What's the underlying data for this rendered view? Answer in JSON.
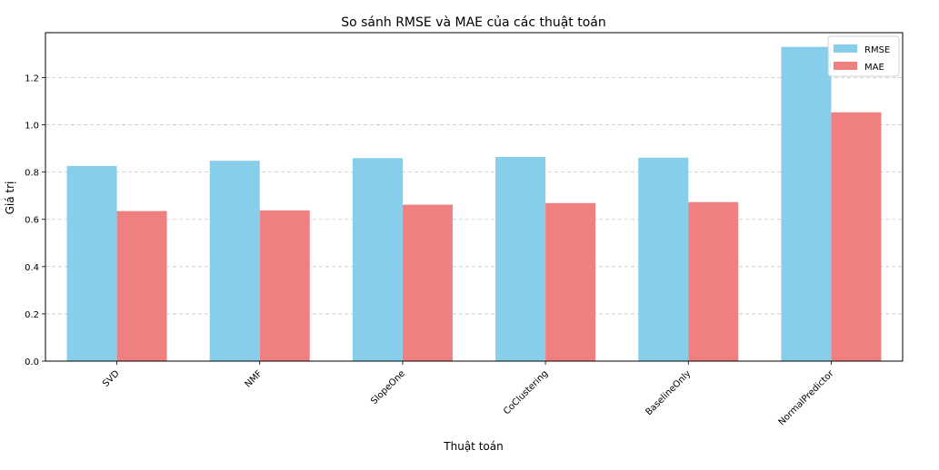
{
  "chart_data": {
    "type": "bar",
    "title": "So sánh RMSE và MAE của các thuật toán",
    "xlabel": "Thuật toán",
    "ylabel": "Giá trị",
    "categories": [
      "SVD",
      "NMF",
      "SlopeOne",
      "CoClustering",
      "BaselineOnly",
      "NormalPredictor"
    ],
    "series": [
      {
        "name": "RMSE",
        "color": "#87ceeb",
        "values": [
          0.826,
          0.848,
          0.859,
          0.864,
          0.861,
          1.33
        ]
      },
      {
        "name": "MAE",
        "color": "#f08080",
        "values": [
          0.635,
          0.638,
          0.662,
          0.669,
          0.673,
          1.053
        ]
      }
    ],
    "ylim": [
      0,
      1.39
    ],
    "yticks": [
      "0.0",
      "0.2",
      "0.4",
      "0.6",
      "0.8",
      "1.0",
      "1.2"
    ],
    "grid": "horizontal dashed",
    "legend_position": "top-right",
    "xtick_rotation_deg": 45
  }
}
